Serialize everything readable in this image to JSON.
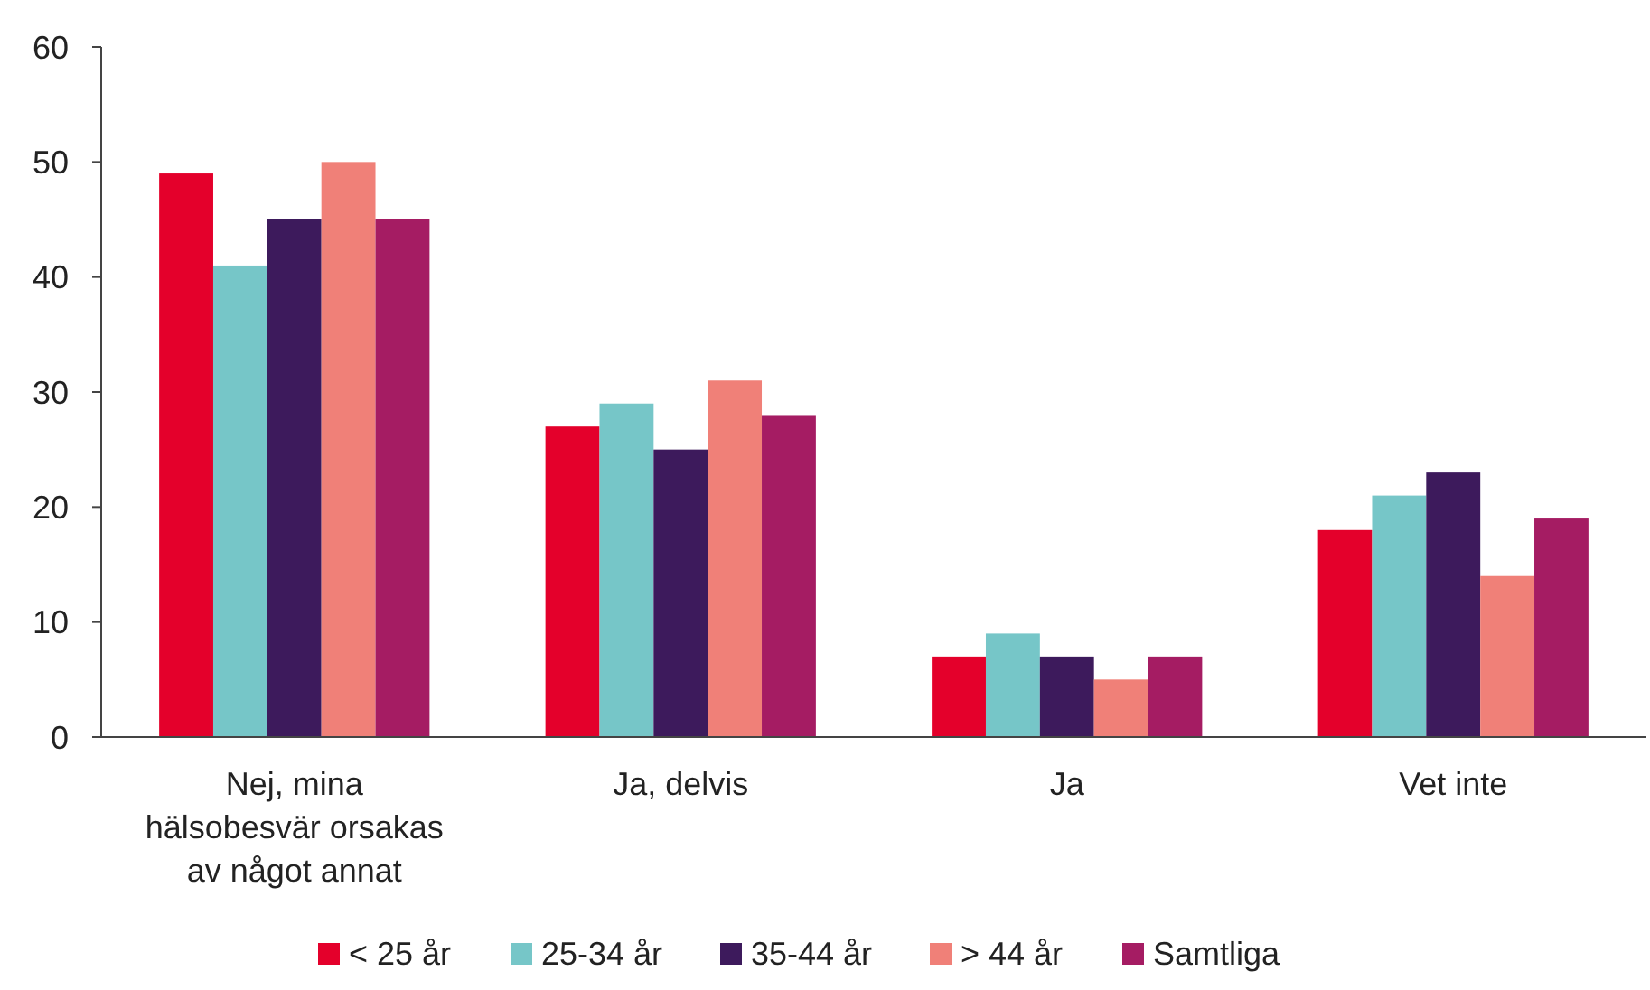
{
  "chart_data": {
    "type": "bar",
    "categories": [
      "Nej, mina hälsobesvär orsakas av något annat",
      "Ja, delvis",
      "Ja",
      "Vet inte"
    ],
    "series": [
      {
        "name": "< 25 år",
        "color": "#e4002b",
        "values": [
          49,
          27,
          7,
          18
        ]
      },
      {
        "name": "25-34 år",
        "color": "#76c6c8",
        "values": [
          41,
          29,
          9,
          21
        ]
      },
      {
        "name": "35-44 år",
        "color": "#3d1a5c",
        "values": [
          45,
          25,
          7,
          23
        ]
      },
      {
        "name": "> 44 år",
        "color": "#f08078",
        "values": [
          50,
          31,
          5,
          14
        ]
      },
      {
        "name": "Samtliga",
        "color": "#a51c63",
        "values": [
          45,
          28,
          7,
          19
        ]
      }
    ],
    "ylim": [
      0,
      60
    ],
    "yticks": [
      0,
      10,
      20,
      30,
      40,
      50,
      60
    ],
    "grid": false,
    "legend": "bottom"
  }
}
